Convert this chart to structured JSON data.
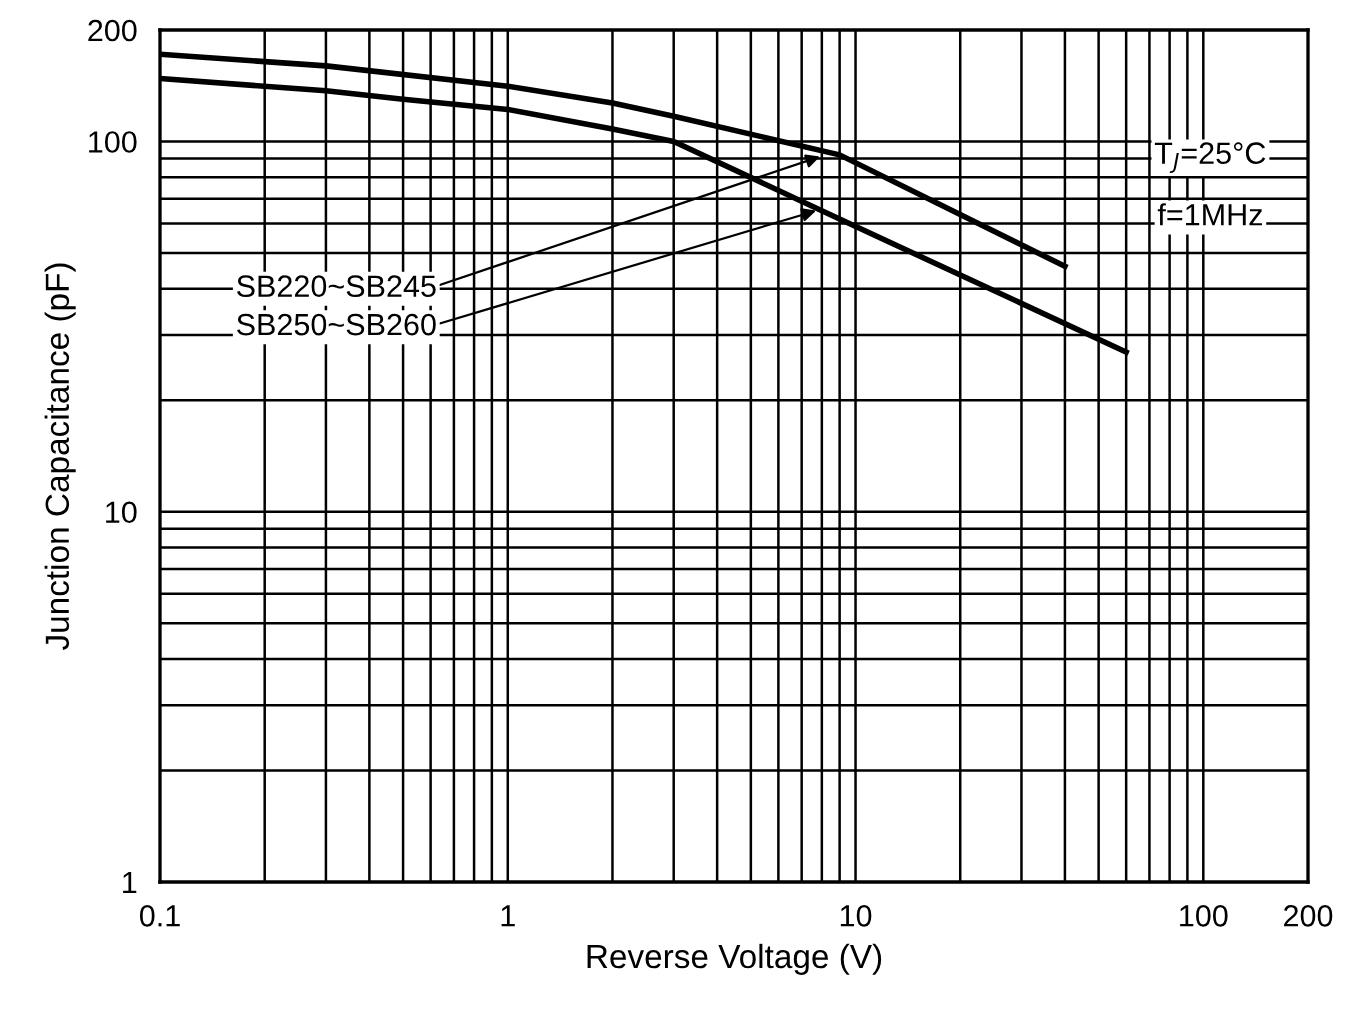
{
  "chart_data": {
    "type": "line",
    "xlabel": "Reverse Voltage (V)",
    "ylabel": "Junction Capacitance (pF)",
    "log": "xy",
    "grid": true,
    "line_style": "solid",
    "marker": "none",
    "xlim": [
      0.1,
      200
    ],
    "xticks": [
      0.1,
      1,
      10,
      100,
      200
    ],
    "ylim": [
      1,
      200
    ],
    "yticks": [
      1,
      10,
      100,
      200
    ],
    "series": [
      {
        "color": "#000000",
        "x": [
          0.1,
          0.3,
          1,
          2,
          3,
          9,
          40
        ],
        "values": [
          172,
          160,
          141,
          127,
          117,
          92,
          46
        ]
      },
      {
        "color": "#000000",
        "x": [
          0.1,
          0.3,
          0.5,
          1,
          2,
          3,
          8,
          60
        ],
        "values": [
          148,
          137,
          130,
          122,
          108,
          100,
          65,
          27
        ]
      }
    ],
    "annotations": [
      {
        "text": "SB220~SB245",
        "x": 7.9,
        "y": 91
      },
      {
        "text": "SB250~SB260",
        "x": 7.7,
        "y": 65
      },
      "T$_{J}$=25°C",
      "f=1MHz"
    ]
  }
}
